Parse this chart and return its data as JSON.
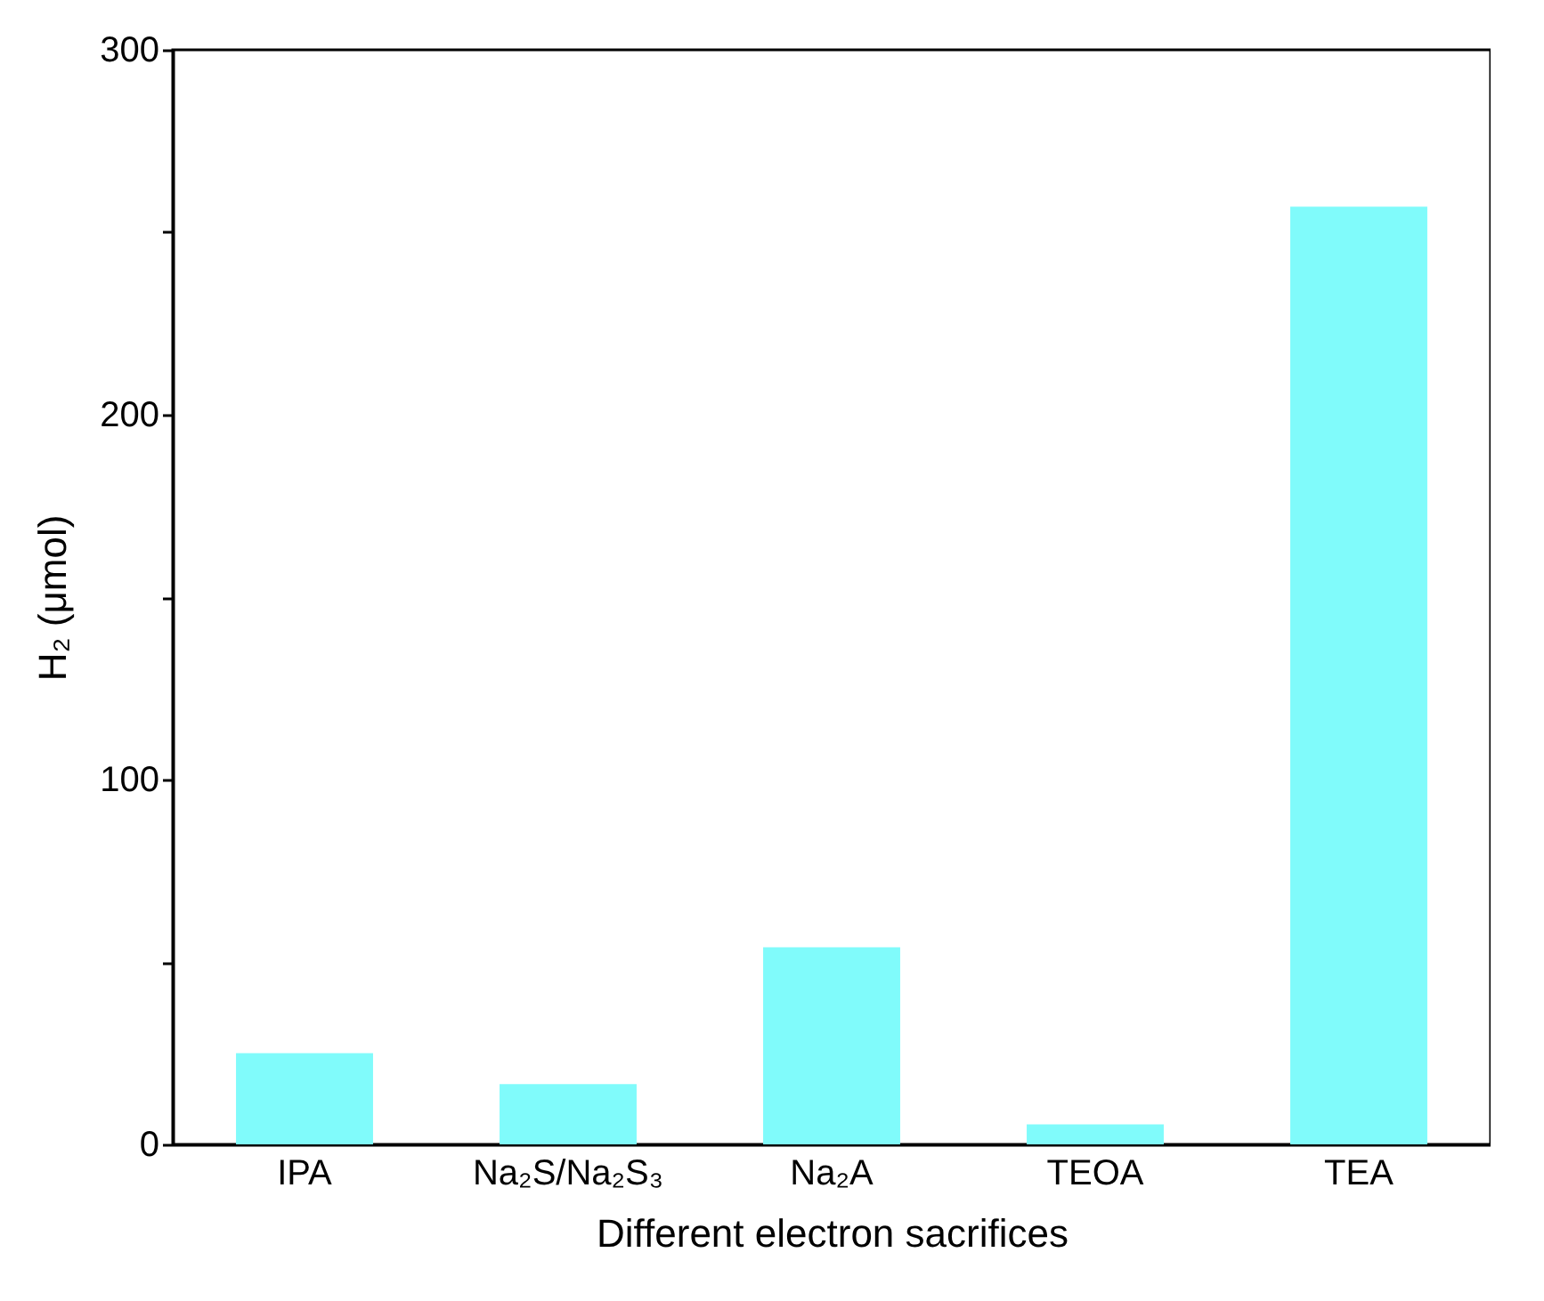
{
  "chart_data": {
    "type": "bar",
    "xlabel": "Different electron sacrifices",
    "ylabel": "H₂ (μmol)",
    "categories": [
      "IPA",
      "Na₂S/Na₂S₃",
      "Na₂A",
      "TEOA",
      "TEA"
    ],
    "values": [
      25,
      16.5,
      54,
      5.5,
      257
    ],
    "color": "#80fbfb",
    "ylim": [
      0,
      300
    ],
    "yticks": [
      0,
      {
        "value": 50,
        "label": null
      },
      100,
      {
        "value": 150,
        "label": null
      },
      200,
      {
        "value": 250,
        "label": null
      },
      300
    ],
    "grid": false
  }
}
